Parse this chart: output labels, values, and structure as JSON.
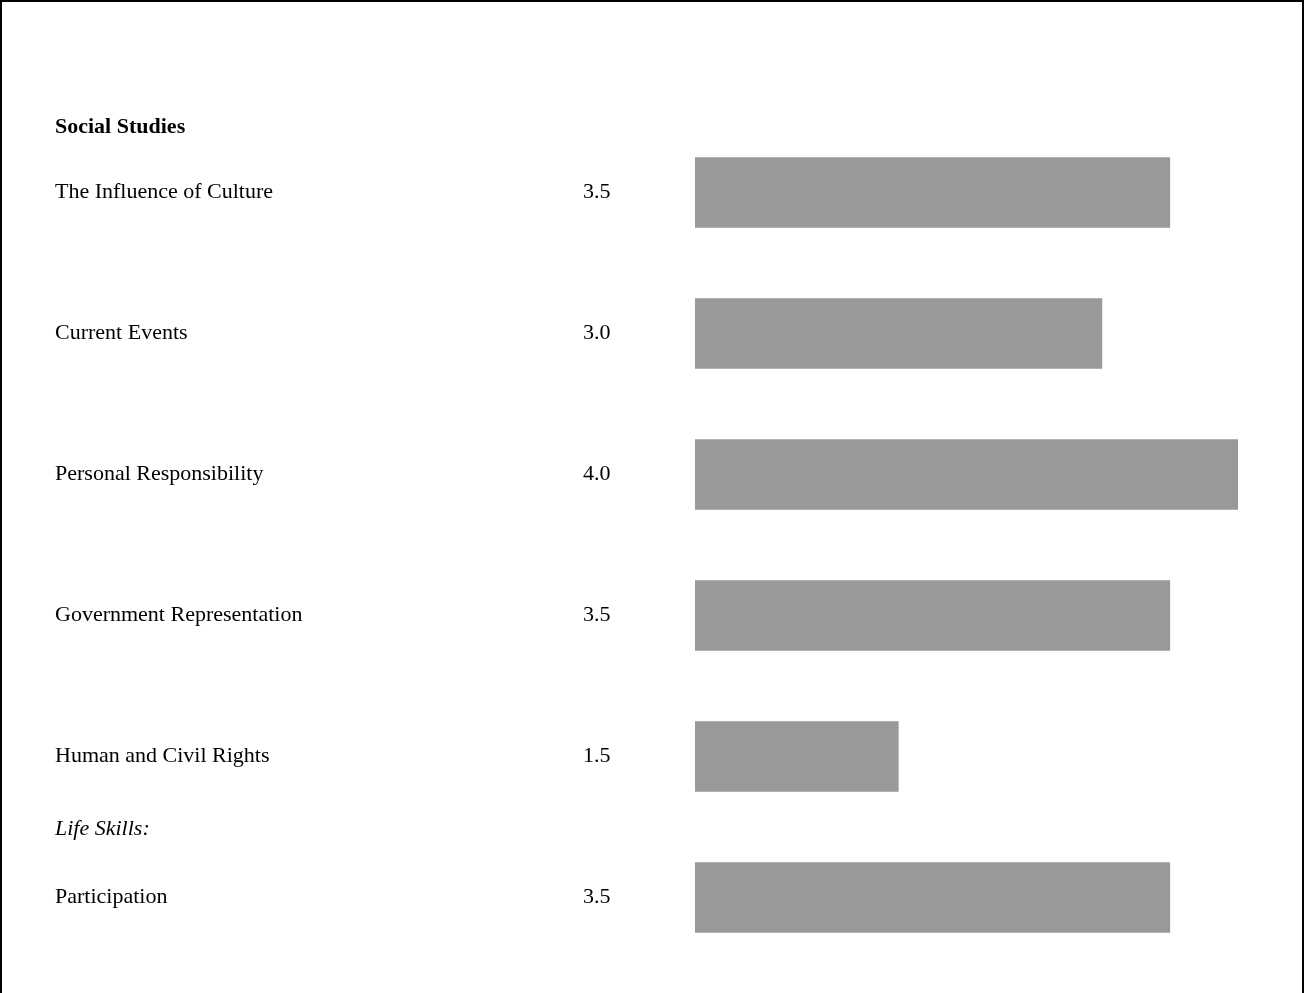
{
  "chart_data": {
    "type": "bar",
    "orientation": "horizontal",
    "title": "Social Studies",
    "categories": [
      "The Influence of Culture",
      "Current Events",
      "Personal Responsibility",
      "Government Representation",
      "Human and Civil Rights",
      "Participation"
    ],
    "values": [
      3.5,
      3.0,
      4.0,
      3.5,
      1.5,
      3.5
    ],
    "value_labels": [
      "3.5",
      "3.0",
      "4.0",
      "3.5",
      "1.5",
      "3.5"
    ],
    "color": "#999999",
    "annotations": [
      "Life Skills:"
    ],
    "legend": false
  }
}
